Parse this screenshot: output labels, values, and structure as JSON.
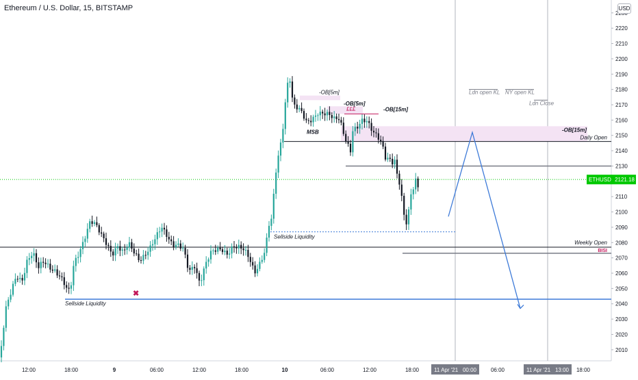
{
  "title": "Ethereum / U.S. Dollar, 15, BITSTAMP",
  "currency_button": "USD",
  "price_tag": {
    "symbol": "ETHUSD",
    "value": "2121.18"
  },
  "time_tags": [
    {
      "label": "11 Apr '21",
      "time": "00:00"
    },
    {
      "label": "11 Apr '21",
      "time": "13:00"
    }
  ],
  "chart_data": {
    "type": "candlestick",
    "symbol": "ETHUSD",
    "timeframe": "15",
    "exchange": "BITSTAMP",
    "ylim": [
      2000,
      2230
    ],
    "y_ticks": [
      2010,
      2020,
      2030,
      2040,
      2050,
      2060,
      2070,
      2080,
      2090,
      2100,
      2110,
      2120,
      2130,
      2140,
      2150,
      2160,
      2170,
      2180,
      2190,
      2200,
      2210,
      2220,
      2230
    ],
    "x_ticks": [
      "12:00",
      "18:00",
      "9",
      "06:00",
      "12:00",
      "18:00",
      "10",
      "06:00",
      "12:00",
      "18:00",
      "00:00",
      "06:00",
      "12:00",
      "18:00"
    ],
    "close_path": [
      [
        0,
        2005
      ],
      [
        8,
        2035
      ],
      [
        16,
        2046
      ],
      [
        24,
        2058
      ],
      [
        32,
        2056
      ],
      [
        40,
        2070
      ],
      [
        48,
        2073
      ],
      [
        56,
        2062
      ],
      [
        64,
        2067
      ],
      [
        72,
        2065
      ],
      [
        80,
        2063
      ],
      [
        88,
        2058
      ],
      [
        96,
        2050
      ],
      [
        100,
        2046
      ],
      [
        104,
        2052
      ],
      [
        108,
        2066
      ],
      [
        116,
        2075
      ],
      [
        124,
        2085
      ],
      [
        132,
        2094
      ],
      [
        140,
        2090
      ],
      [
        148,
        2084
      ],
      [
        156,
        2080
      ],
      [
        164,
        2074
      ],
      [
        172,
        2078
      ],
      [
        180,
        2072
      ],
      [
        188,
        2078
      ],
      [
        196,
        2074
      ],
      [
        204,
        2070
      ],
      [
        212,
        2073
      ],
      [
        220,
        2076
      ],
      [
        228,
        2082
      ],
      [
        236,
        2090
      ],
      [
        244,
        2086
      ],
      [
        252,
        2080
      ],
      [
        260,
        2078
      ],
      [
        268,
        2074
      ],
      [
        276,
        2060
      ],
      [
        284,
        2066
      ],
      [
        292,
        2055
      ],
      [
        300,
        2066
      ],
      [
        308,
        2072
      ],
      [
        316,
        2074
      ],
      [
        324,
        2076
      ],
      [
        332,
        2074
      ],
      [
        340,
        2078
      ],
      [
        348,
        2076
      ],
      [
        356,
        2074
      ],
      [
        364,
        2070
      ],
      [
        372,
        2062
      ],
      [
        380,
        2068
      ],
      [
        388,
        2075
      ],
      [
        392,
        2090
      ],
      [
        396,
        2092
      ],
      [
        400,
        2110
      ],
      [
        404,
        2130
      ],
      [
        408,
        2140
      ],
      [
        412,
        2150
      ],
      [
        416,
        2170
      ],
      [
        420,
        2185
      ],
      [
        424,
        2188
      ],
      [
        428,
        2170
      ],
      [
        432,
        2168
      ],
      [
        440,
        2164
      ],
      [
        448,
        2158
      ],
      [
        456,
        2162
      ],
      [
        464,
        2166
      ],
      [
        472,
        2164
      ],
      [
        480,
        2162
      ],
      [
        488,
        2160
      ],
      [
        496,
        2162
      ],
      [
        504,
        2150
      ],
      [
        508,
        2145
      ],
      [
        512,
        2140
      ],
      [
        516,
        2155
      ],
      [
        520,
        2152
      ],
      [
        528,
        2158
      ],
      [
        536,
        2160
      ],
      [
        544,
        2155
      ],
      [
        552,
        2150
      ],
      [
        556,
        2146
      ],
      [
        560,
        2140
      ],
      [
        564,
        2132
      ],
      [
        568,
        2134
      ],
      [
        572,
        2130
      ],
      [
        576,
        2135
      ],
      [
        580,
        2125
      ],
      [
        584,
        2120
      ],
      [
        588,
        2108
      ],
      [
        592,
        2092
      ],
      [
        596,
        2098
      ],
      [
        600,
        2110
      ],
      [
        604,
        2115
      ],
      [
        608,
        2120
      ],
      [
        612,
        2111
      ]
    ],
    "levels": [
      {
        "label": "Daily Open",
        "price": 2146
      },
      {
        "label": "Weekly Open",
        "price": 2077
      },
      {
        "label": "Sellside Liquidity",
        "price": 2043
      },
      {
        "label": "Sellside Liquidity",
        "price": 2087
      },
      {
        "label": "",
        "price": 2130
      },
      {
        "label": "BISI",
        "price": 2073
      }
    ],
    "order_blocks": [
      {
        "label": "-OB[5m]",
        "price_low": 2173,
        "price_high": 2176
      },
      {
        "label": "-OB[5m]",
        "price_low": 2164,
        "price_high": 2169
      },
      {
        "label": "-OB[15m]",
        "price_low": 2146,
        "price_high": 2156
      }
    ],
    "annotations": [
      "MSB",
      "£££",
      "-OB[15m]",
      "Ldn open KL",
      "NY open KL",
      "Ldn Close"
    ],
    "projection": {
      "points": [
        2097,
        2152,
        2037
      ]
    },
    "last_price": 2121.18
  },
  "colors": {
    "up": "#26a69a",
    "down": "#131722",
    "projection": "#3d7ad8",
    "ob_fill": "#f4e3f4",
    "price_tag": "#00c800"
  }
}
